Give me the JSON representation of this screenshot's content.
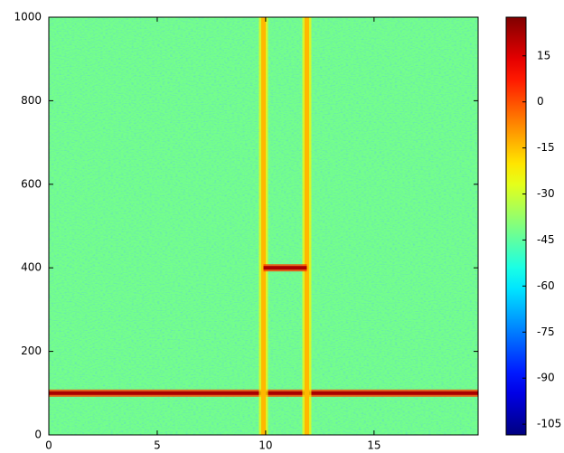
{
  "chart_data": {
    "type": "spectrogram",
    "xlim": [
      0,
      19.8
    ],
    "xticks": [
      0,
      5,
      10,
      15
    ],
    "ylim": [
      0,
      1000
    ],
    "yticks": [
      0,
      200,
      400,
      600,
      800,
      1000
    ],
    "clim": [
      -108.5,
      27.6
    ],
    "cticks": [
      15,
      0,
      -15,
      -30,
      -45,
      -60,
      -75,
      -90,
      -105
    ],
    "colormap": "jet",
    "background": -42,
    "features": [
      {
        "orientation": "horizontal",
        "y": 100,
        "xrange": [
          0,
          19.8
        ],
        "value": 22
      },
      {
        "orientation": "vertical",
        "x": 9.9,
        "yrange": [
          0,
          1000
        ],
        "value": -14
      },
      {
        "orientation": "vertical",
        "x": 11.9,
        "yrange": [
          0,
          1000
        ],
        "value": -14
      },
      {
        "orientation": "horizontal",
        "y": 400,
        "xrange": [
          9.9,
          11.9
        ],
        "value": 22
      }
    ]
  }
}
